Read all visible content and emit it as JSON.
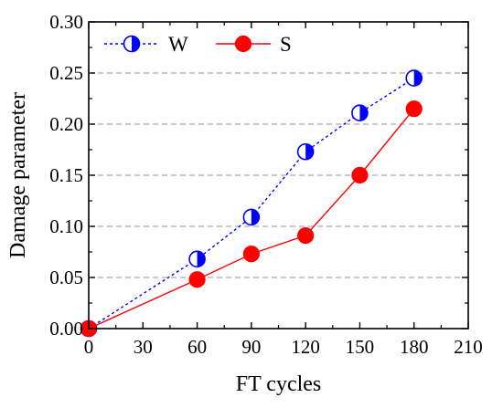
{
  "chart_data": {
    "type": "line",
    "title": "",
    "xlabel": "FT cycles",
    "ylabel": "Damage parameter",
    "xlim": [
      0,
      210
    ],
    "ylim": [
      0,
      0.3
    ],
    "xticks": [
      "0",
      "30",
      "60",
      "90",
      "120",
      "150",
      "180",
      "210"
    ],
    "yticks": [
      "0.00",
      "0.05",
      "0.10",
      "0.15",
      "0.20",
      "0.25",
      "0.30"
    ],
    "grid": "horizontal dashed",
    "legend_position": "top-left",
    "series": [
      {
        "name": "W",
        "color": "#0000ff",
        "line_style": "dotted",
        "marker": "half-filled-circle",
        "x": [
          0,
          60,
          90,
          120,
          150,
          180
        ],
        "y": [
          0.0,
          0.068,
          0.109,
          0.173,
          0.211,
          0.245
        ]
      },
      {
        "name": "S",
        "color": "#ff0000",
        "line_style": "solid",
        "marker": "filled-circle",
        "x": [
          0,
          60,
          90,
          120,
          150,
          180
        ],
        "y": [
          0.0,
          0.048,
          0.073,
          0.091,
          0.15,
          0.215
        ]
      }
    ]
  }
}
